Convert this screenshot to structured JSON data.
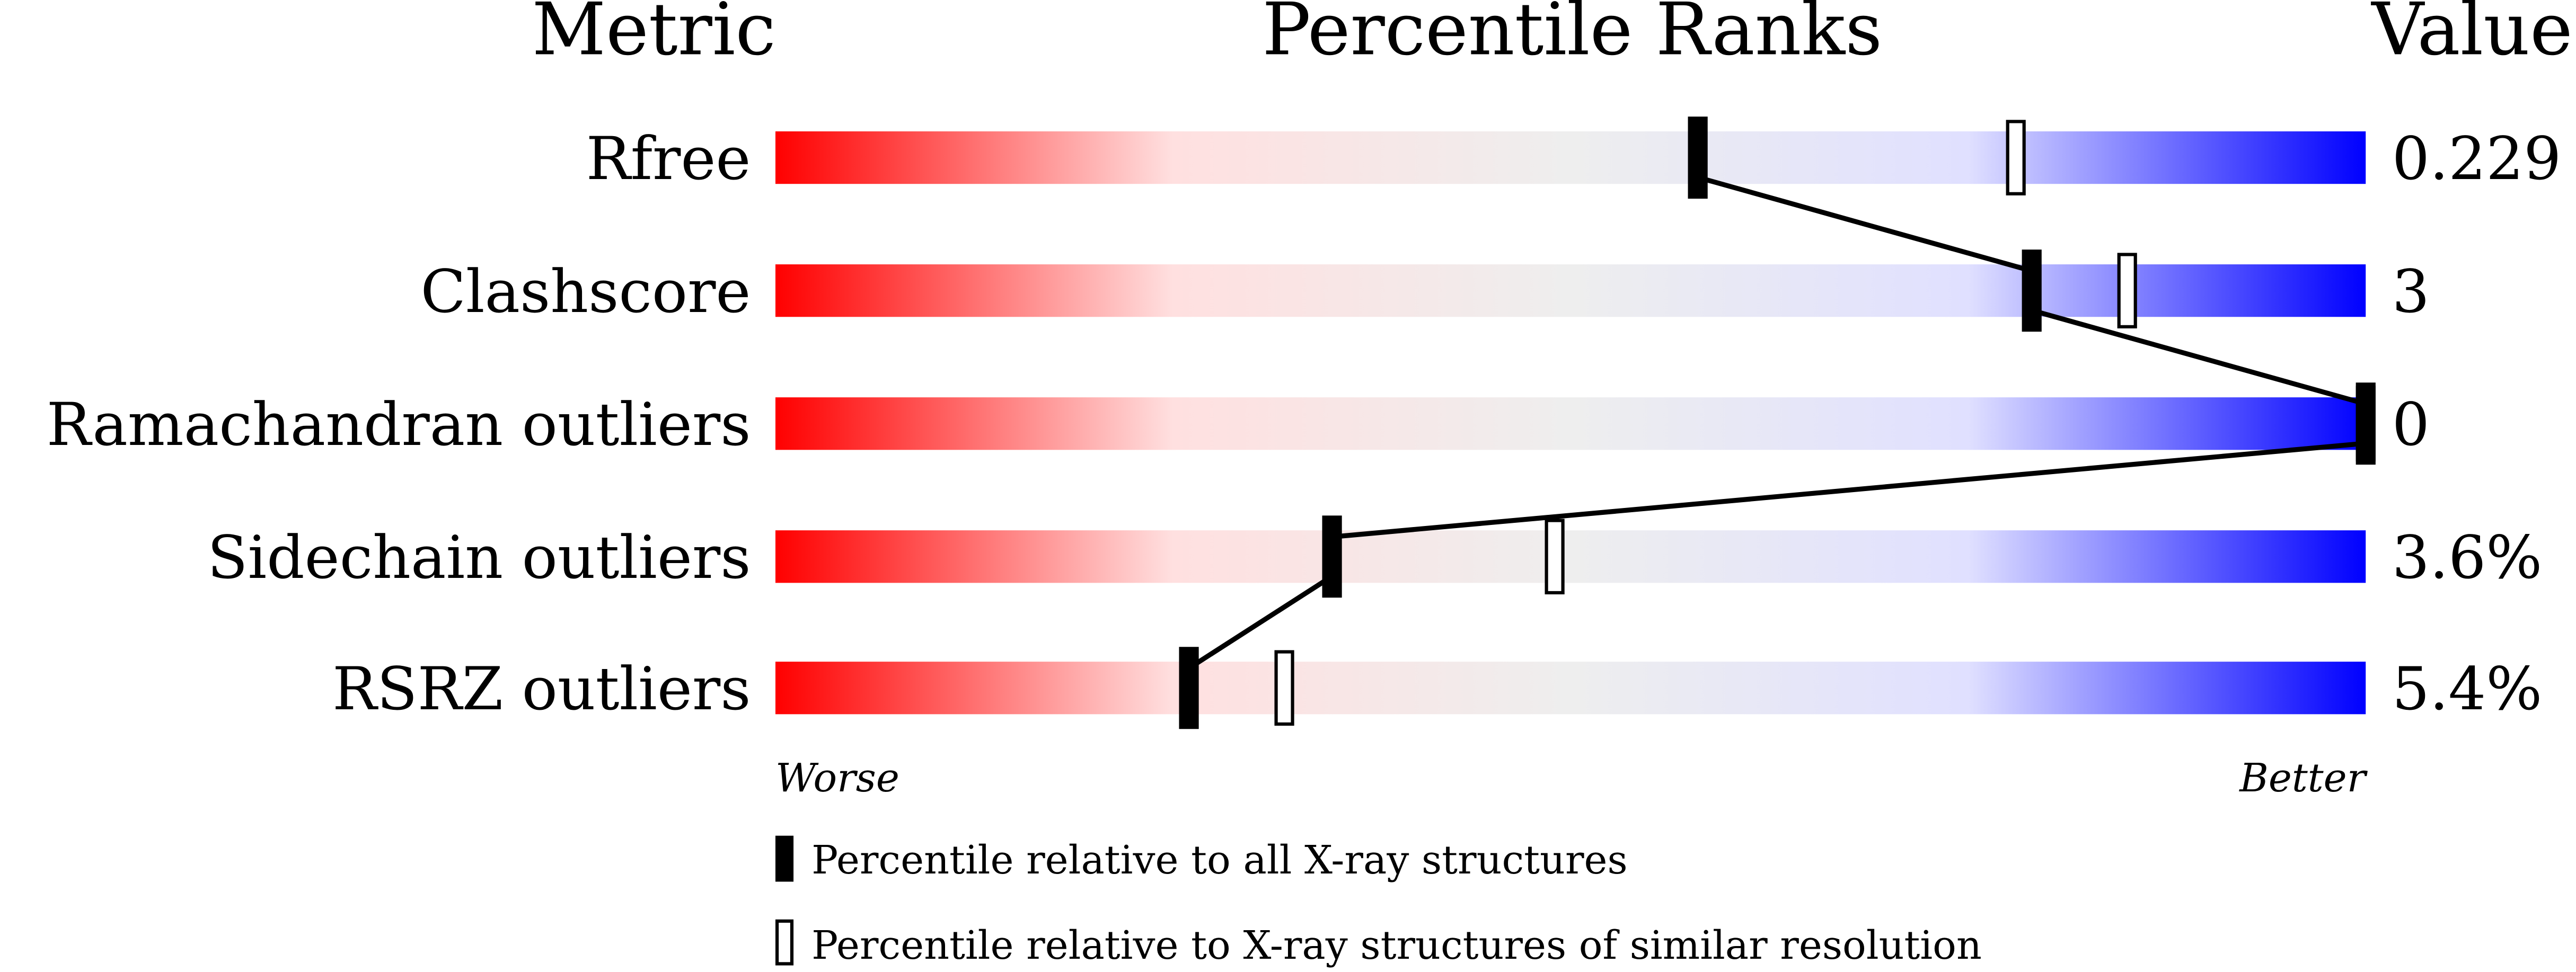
{
  "chart_data": {
    "type": "percentile-bar",
    "headers": {
      "metric": "Metric",
      "ranks": "Percentile Ranks",
      "value": "Value"
    },
    "axis": {
      "min": 0,
      "max": 100,
      "left_label": "Worse",
      "right_label": "Better"
    },
    "gradient_colors": [
      "#ff0000",
      "#ffe0e0",
      "#eeeeee",
      "#e0e0ff",
      "#0000ff"
    ],
    "metrics": [
      {
        "name": "Rfree",
        "value": "0.229",
        "percentile_all": 58,
        "percentile_similar": 78
      },
      {
        "name": "Clashscore",
        "value": "3",
        "percentile_all": 79,
        "percentile_similar": 85
      },
      {
        "name": "Ramachandran outliers",
        "value": "0",
        "percentile_all": 100,
        "percentile_similar": 100
      },
      {
        "name": "Sidechain outliers",
        "value": "3.6%",
        "percentile_all": 35,
        "percentile_similar": 49
      },
      {
        "name": "RSRZ outliers",
        "value": "5.4%",
        "percentile_all": 26,
        "percentile_similar": 32
      }
    ],
    "legend": [
      {
        "marker": "filled",
        "label": "Percentile relative to all X-ray structures"
      },
      {
        "marker": "open",
        "label": "Percentile relative to X-ray structures of similar resolution"
      }
    ]
  }
}
